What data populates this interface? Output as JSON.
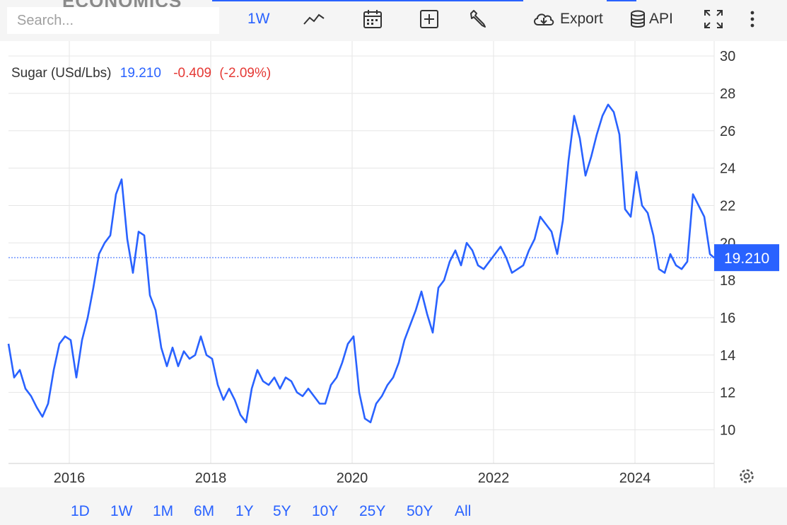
{
  "brand": "ECONOMICS",
  "search": {
    "placeholder": "Search..."
  },
  "toolbar": {
    "interval": "1W",
    "export_label": "Export",
    "api_label": "API"
  },
  "ranges": [
    "1D",
    "1W",
    "1M",
    "6M",
    "1Y",
    "5Y",
    "10Y",
    "25Y",
    "50Y",
    "All"
  ],
  "colors": {
    "line": "#2962ff",
    "negative": "#e53935",
    "toolbar_bg": "#f5f5f5"
  },
  "chart_data": {
    "type": "line",
    "title": "Sugar (USd/Lbs)",
    "last_value": "19.210",
    "change": "-0.409",
    "change_pct": "(-2.09%)",
    "ylim": [
      8.2,
      30.8
    ],
    "y_ticks": [
      10,
      12,
      14,
      16,
      18,
      20,
      22,
      24,
      26,
      28,
      30
    ],
    "x_ticks": [
      2016,
      2018,
      2020,
      2022,
      2024
    ],
    "xlim": [
      2015.14,
      2025.12
    ],
    "grid": true,
    "series": [
      {
        "x": [
          2015.14,
          2015.22,
          2015.3,
          2015.38,
          2015.46,
          2015.54,
          2015.62,
          2015.7,
          2015.78,
          2015.86,
          2015.94,
          2016.02,
          2016.1,
          2016.18,
          2016.26,
          2016.34,
          2016.42,
          2016.5,
          2016.58,
          2016.66,
          2016.74,
          2016.82,
          2016.9,
          2016.98,
          2017.06,
          2017.14,
          2017.22,
          2017.3,
          2017.38,
          2017.46,
          2017.54,
          2017.62,
          2017.7,
          2017.78,
          2017.86,
          2017.94,
          2018.02,
          2018.1,
          2018.18,
          2018.26,
          2018.34,
          2018.42,
          2018.5,
          2018.58,
          2018.66,
          2018.74,
          2018.82,
          2018.9,
          2018.98,
          2019.06,
          2019.14,
          2019.22,
          2019.3,
          2019.38,
          2019.46,
          2019.54,
          2019.62,
          2019.7,
          2019.78,
          2019.86,
          2019.94,
          2020.02,
          2020.1,
          2020.18,
          2020.26,
          2020.34,
          2020.42,
          2020.5,
          2020.58,
          2020.66,
          2020.74,
          2020.82,
          2020.9,
          2020.98,
          2021.06,
          2021.14,
          2021.22,
          2021.3,
          2021.38,
          2021.46,
          2021.54,
          2021.62,
          2021.7,
          2021.78,
          2021.86,
          2021.94,
          2022.02,
          2022.1,
          2022.18,
          2022.26,
          2022.34,
          2022.42,
          2022.5,
          2022.58,
          2022.66,
          2022.74,
          2022.82,
          2022.9,
          2022.98,
          2023.06,
          2023.14,
          2023.22,
          2023.3,
          2023.38,
          2023.46,
          2023.54,
          2023.62,
          2023.7,
          2023.78,
          2023.86,
          2023.94,
          2024.02,
          2024.1,
          2024.18,
          2024.26,
          2024.34,
          2024.42,
          2024.5,
          2024.58,
          2024.66,
          2024.74,
          2024.82,
          2024.9,
          2024.98,
          2025.06,
          2025.12
        ],
        "y": [
          14.6,
          12.8,
          13.2,
          12.2,
          11.8,
          11.2,
          10.7,
          11.4,
          13.2,
          14.6,
          15.0,
          14.8,
          12.8,
          14.8,
          16.0,
          17.6,
          19.4,
          20.0,
          20.4,
          22.6,
          23.4,
          20.2,
          18.4,
          20.6,
          20.4,
          17.2,
          16.4,
          14.4,
          13.4,
          14.4,
          13.4,
          14.2,
          13.8,
          14.0,
          15.0,
          14.0,
          13.8,
          12.4,
          11.6,
          12.2,
          11.6,
          10.8,
          10.4,
          12.2,
          13.2,
          12.6,
          12.4,
          12.8,
          12.2,
          12.8,
          12.6,
          12.0,
          11.8,
          12.2,
          11.8,
          11.4,
          11.4,
          12.4,
          12.8,
          13.6,
          14.6,
          15.0,
          12.0,
          10.6,
          10.4,
          11.4,
          11.8,
          12.4,
          12.8,
          13.6,
          14.8,
          15.6,
          16.4,
          17.4,
          16.2,
          15.2,
          17.6,
          18.0,
          19.0,
          19.6,
          18.8,
          20.0,
          19.6,
          18.8,
          18.6,
          19.0,
          19.4,
          19.8,
          19.2,
          18.4,
          18.6,
          18.8,
          19.6,
          20.2,
          21.4,
          21.0,
          20.6,
          19.4,
          21.2,
          24.4,
          26.8,
          25.6,
          23.6,
          24.6,
          25.8,
          26.8,
          27.4,
          27.0,
          25.8,
          21.8,
          21.4,
          23.8,
          22.0,
          21.6,
          20.4,
          18.6,
          18.4,
          19.4,
          18.8,
          18.6,
          19.0,
          22.6,
          22.0,
          21.4,
          19.4,
          19.2
        ]
      }
    ]
  }
}
